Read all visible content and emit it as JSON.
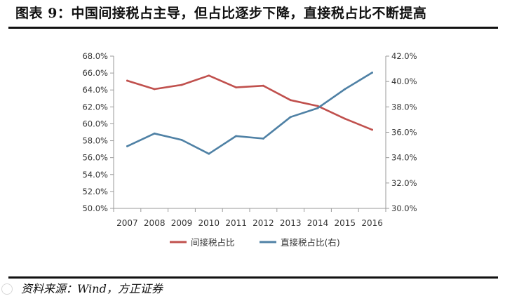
{
  "figure": {
    "title": "图表 9：中国间接税占主导，但占比逐步下降，直接税占比不断提高",
    "source": "资料来源：Wind，方正证券"
  },
  "chart_data": {
    "type": "line",
    "title": "",
    "categories": [
      "2007",
      "2008",
      "2009",
      "2010",
      "2011",
      "2012",
      "2013",
      "2014",
      "2015",
      "2016"
    ],
    "y_left": {
      "ticks": [
        "50.0%",
        "52.0%",
        "54.0%",
        "56.0%",
        "58.0%",
        "60.0%",
        "62.0%",
        "64.0%",
        "66.0%",
        "68.0%"
      ],
      "ylim": [
        50,
        68
      ]
    },
    "y_right": {
      "ticks": [
        "30.0%",
        "32.0%",
        "34.0%",
        "36.0%",
        "38.0%",
        "40.0%",
        "42.0%"
      ],
      "ylim": [
        30,
        42
      ]
    },
    "series": [
      {
        "name": "间接税占比",
        "axis": "left",
        "color": "#c0504d",
        "values": [
          65.1,
          64.1,
          64.6,
          65.7,
          64.3,
          64.5,
          62.8,
          62.1,
          60.6,
          59.3
        ]
      },
      {
        "name": "直接税占比(右)",
        "axis": "right",
        "color": "#4f81a5",
        "values": [
          34.9,
          35.9,
          35.4,
          34.3,
          35.7,
          35.5,
          37.2,
          37.9,
          39.4,
          40.7
        ]
      }
    ],
    "grid": false,
    "legend": "bottom"
  }
}
